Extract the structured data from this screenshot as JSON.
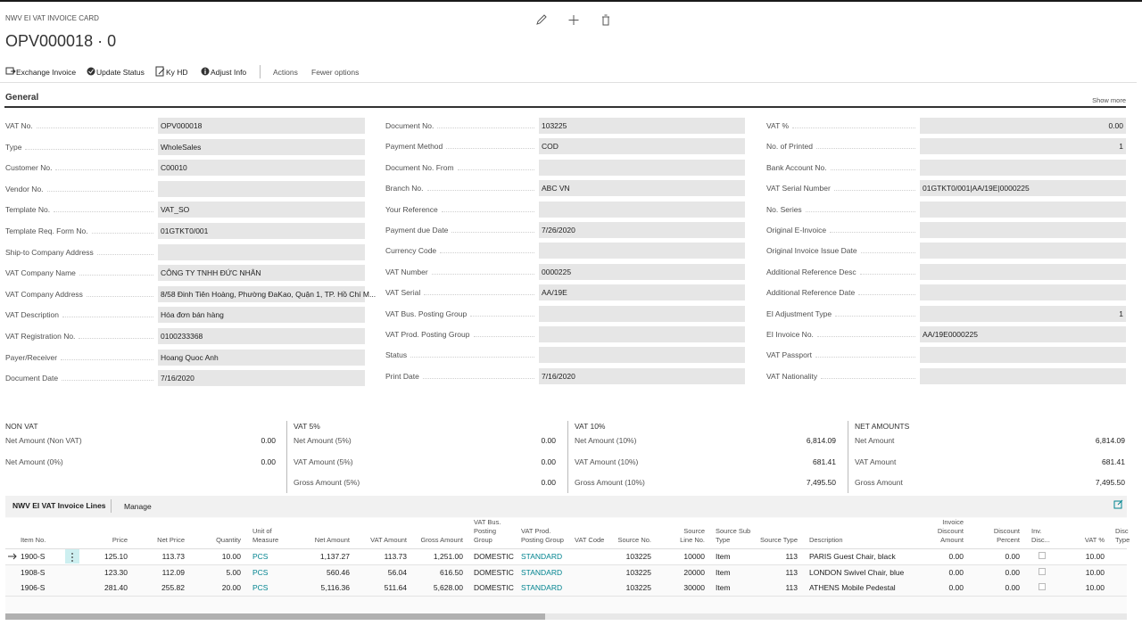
{
  "header": {
    "caption": "NWV EI VAT INVOICE CARD",
    "title": "OPV000018 · 0"
  },
  "actions": [
    "Exchange Invoice",
    "Update Status",
    "Ky HD",
    "Adjust Info",
    "Actions",
    "Fewer options"
  ],
  "general": {
    "title": "General",
    "show_more": "Show more",
    "columns": [
      [
        {
          "label": "VAT No.",
          "value": "OPV000018"
        },
        {
          "label": "Type",
          "value": "WholeSales"
        },
        {
          "label": "Customer No.",
          "value": "C00010"
        },
        {
          "label": "Vendor No."
        },
        {
          "label": "Template No.",
          "value": "VAT_SO"
        },
        {
          "label": "Template Req. Form No.",
          "value": "01GTKT0/001"
        },
        {
          "label": "Ship-to Company Address"
        },
        {
          "label": "VAT Company Name",
          "value": "CÔNG TY TNHH ĐỨC NHÂN"
        },
        {
          "label": "VAT Company Address",
          "value": "8/58 Đinh Tiên Hoàng, Phường ĐaKao, Quận 1, TP. Hồ Chí M..."
        },
        {
          "label": "VAT Description",
          "value": "Hóa đơn bán hàng"
        },
        {
          "label": "VAT Registration No.",
          "value": "0100233368"
        },
        {
          "label": "Payer/Receiver",
          "value": "Hoang Quoc Anh"
        },
        {
          "label": "Document Date",
          "value": "7/16/2020"
        }
      ],
      [
        {
          "label": "Document No.",
          "value": "103225"
        },
        {
          "label": "Payment Method",
          "value": "COD"
        },
        {
          "label": "Document No. From"
        },
        {
          "label": "Branch No.",
          "value": "ABC VN"
        },
        {
          "label": "Your Reference"
        },
        {
          "label": "Payment due Date",
          "value": "7/26/2020"
        },
        {
          "label": "Currency Code"
        },
        {
          "label": "VAT Number",
          "value": "0000225"
        },
        {
          "label": "VAT Serial",
          "value": "AA/19E"
        },
        {
          "label": "VAT Bus. Posting Group"
        },
        {
          "label": "VAT Prod. Posting Group"
        },
        {
          "label": "Status"
        },
        {
          "label": "Print Date",
          "value": "7/16/2020"
        }
      ],
      [
        {
          "label": "VAT %",
          "value": "0.00"
        },
        {
          "label": "No. of Printed",
          "value": "1"
        },
        {
          "label": "Bank Account No."
        },
        {
          "label": "VAT Serial Number",
          "value": "01GTKT0/001|AA/19E|0000225"
        },
        {
          "label": "No. Series"
        },
        {
          "label": "Original E-Invoice"
        },
        {
          "label": "Original Invoice Issue Date"
        },
        {
          "label": "Additional Reference Desc"
        },
        {
          "label": "Additional Reference Date"
        },
        {
          "label": "EI Adjustment Type",
          "value": "1"
        },
        {
          "label": "EI Invoice No.",
          "value": "AA/19E0000225"
        },
        {
          "label": "VAT Passport"
        },
        {
          "label": "VAT Nationality"
        }
      ]
    ]
  },
  "totals": [
    {
      "title": "NON VAT",
      "rows": [
        {
          "label": "Net Amount (Non VAT)",
          "value": "0.00"
        },
        {
          "label": "Net Amount (0%)",
          "value": "0.00"
        }
      ]
    },
    {
      "title": "VAT 5%",
      "rows": [
        {
          "label": "Net Amount (5%)",
          "value": "0.00"
        },
        {
          "label": "VAT Amount (5%)",
          "value": "0.00"
        },
        {
          "label": "Gross Amount (5%)",
          "value": "0.00"
        }
      ]
    },
    {
      "title": "VAT 10%",
      "rows": [
        {
          "label": "Net Amount (10%)",
          "value": "6,814.09"
        },
        {
          "label": "VAT Amount (10%)",
          "value": "681.41"
        },
        {
          "label": "Gross Amount (10%)",
          "value": "7,495.50"
        }
      ]
    },
    {
      "title": "NET AMOUNTS",
      "rows": [
        {
          "label": "Net Amount",
          "value": "6,814.09"
        },
        {
          "label": "VAT Amount",
          "value": "681.41"
        },
        {
          "label": "Gross Amount",
          "value": "7,495.50"
        }
      ]
    }
  ],
  "lines": {
    "tab": "NWV EI VAT Invoice Lines",
    "manage": "Manage",
    "columns": [
      "Item No.",
      "Price",
      "Net Price",
      "Quantity",
      "Unit of Measure",
      "Net Amount",
      "VAT Amount",
      "Gross Amount",
      "VAT Bus. Posting Group",
      "VAT Prod. Posting Group",
      "VAT Code",
      "Source No.",
      "Source Line No.",
      "Source Sub Type",
      "Source Type",
      "Description",
      "Invoice Discount Amount",
      "Discount Percent",
      "Inv. Disc...",
      "VAT %",
      "Disc Type"
    ],
    "rows": [
      [
        "1900-S",
        "125.10",
        "113.73",
        "10.00",
        "PCS",
        "1,137.27",
        "113.73",
        "1,251.00",
        "DOMESTIC",
        "STANDARD",
        null,
        "103225",
        "10000",
        "Item",
        "113",
        "PARIS Guest Chair, black",
        "0.00",
        "0.00",
        null,
        "10.00",
        null
      ],
      [
        "1908-S",
        "123.30",
        "112.09",
        "5.00",
        "PCS",
        "560.46",
        "56.04",
        "616.50",
        "DOMESTIC",
        "STANDARD",
        null,
        "103225",
        "20000",
        "Item",
        "113",
        "LONDON Swivel Chair, blue",
        "0.00",
        "0.00",
        null,
        "10.00",
        null
      ],
      [
        "1906-S",
        "281.40",
        "255.82",
        "20.00",
        "PCS",
        "5,116.36",
        "511.64",
        "5,628.00",
        "DOMESTIC",
        "STANDARD",
        null,
        "103225",
        "30000",
        "Item",
        "113",
        "ATHENS Mobile Pedestal",
        "0.00",
        "0.00",
        null,
        "10.00",
        null
      ]
    ]
  }
}
